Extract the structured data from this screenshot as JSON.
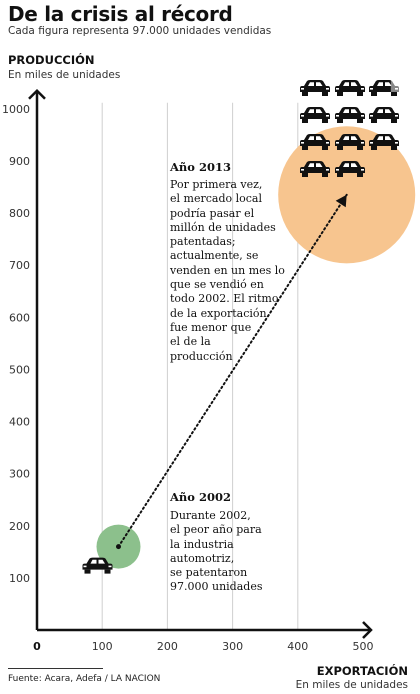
{
  "header": {
    "title": "De la crisis al récord",
    "subtitle": "Cada figura representa 97.000 unidades vendidas"
  },
  "source": "Fuente: Acara, Adefa / LA NACION",
  "colors": {
    "bubble_2002": "#8cc08c",
    "bubble_2013": "#f7c58f",
    "car": "#111111",
    "car_faded": "#888888",
    "axis": "#111111",
    "grid": "#cfcfcf"
  },
  "icons": {
    "car": "car-icon",
    "arrow": "arrow-icon"
  },
  "annotations": {
    "y2013": {
      "title": "Año 2013",
      "lines": [
        "Por primera vez,",
        "el mercado local",
        "podría pasar el",
        "millón de unidades",
        "patentadas;",
        "actualmente, se",
        "venden en un mes lo",
        "que se vendió en",
        "todo 2002. El ritmo",
        "de la exportación",
        "fue menor que",
        "el de la",
        "producción"
      ]
    },
    "y2002": {
      "title": "Año 2002",
      "lines": [
        "Durante 2002,",
        "el peor año para",
        "la industria",
        "automotriz,",
        "se patentaron",
        "97.000 unidades"
      ]
    }
  },
  "chart_data": {
    "type": "scatter",
    "title": "De la crisis al récord",
    "subtitle": "Cada figura representa 97.000 unidades vendidas",
    "ylabel": "PRODUCCIÓN",
    "ylabel_sub": "En miles de unidades",
    "xlabel": "EXPORTACIÓN",
    "xlabel_sub": "En miles de unidades",
    "xlim": [
      0,
      500
    ],
    "ylim": [
      0,
      1000
    ],
    "xticks": [
      100,
      200,
      300,
      400,
      500
    ],
    "yticks": [
      100,
      200,
      300,
      400,
      500,
      600,
      700,
      800,
      900,
      1000
    ],
    "zero_label": "0",
    "grid": "vertical",
    "points": [
      {
        "label": "Año 2002",
        "x": 125,
        "y": 160,
        "cars_sold": 1
      },
      {
        "label": "Año 2013",
        "x": 475,
        "y": 835,
        "cars_sold": 9.7
      }
    ],
    "unit_per_car": 97000
  }
}
